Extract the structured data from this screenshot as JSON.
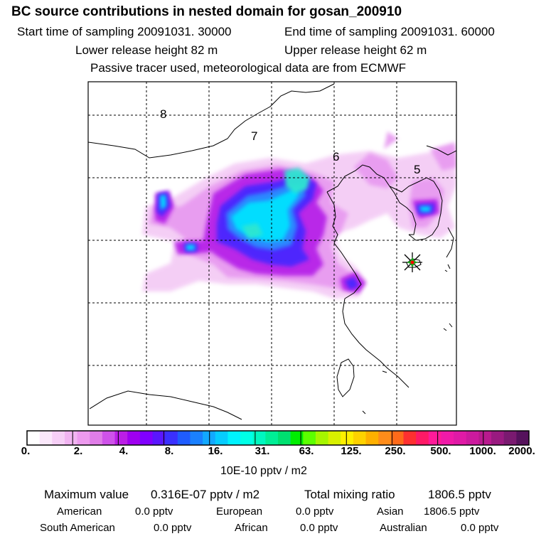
{
  "header": {
    "title": "BC  source contributions in nested domain for gosan_200910",
    "start_label": "Start time of sampling 20091031. 30000",
    "end_label": "End time of sampling 20091031. 60000",
    "lower_release": "Lower release height   82 m",
    "upper_release": "Upper release height   62 m",
    "tracer_note": "Passive tracer used, meteorological data are from ECMWF"
  },
  "map": {
    "region_labels": [
      "8",
      "7",
      "6",
      "5"
    ],
    "receptor_marker": "gosan-receptor-star"
  },
  "colorbar": {
    "colors": [
      "#ffffff",
      "#fbe8fb",
      "#f6cff6",
      "#f1b4f1",
      "#ed9aee",
      "#e07de8",
      "#cf52ea",
      "#bb1ee6",
      "#9f00f0",
      "#8000ff",
      "#5a16ff",
      "#3a30ff",
      "#1f5cff",
      "#1a80ff",
      "#12a8ff",
      "#06ccff",
      "#00f2ff",
      "#00ffe6",
      "#00f8c0",
      "#00ee96",
      "#00e070",
      "#00ee00",
      "#5cff00",
      "#a6f500",
      "#d8f000",
      "#fff000",
      "#ffd200",
      "#ffb000",
      "#ff8c1a",
      "#ff6a1a",
      "#ff3030",
      "#ff1a66",
      "#ff1a99",
      "#f01aa8",
      "#e01aa6",
      "#cc1a9e",
      "#b81a8e",
      "#991a80",
      "#7a1a70",
      "#55125c"
    ],
    "ticks": [
      "0.",
      "2.",
      "4.",
      "8.",
      "16.",
      "31.",
      "63.",
      "125.",
      "250.",
      "500.",
      "1000.",
      "2000."
    ],
    "units": "10E-10 pptv / m2"
  },
  "summary": {
    "max_label": "Maximum value",
    "max_value": "0.316E-07 pptv / m2",
    "total_label": "Total mixing ratio",
    "total_value": "1806.5 pptv"
  },
  "contributions": [
    {
      "region": "American",
      "value": "0.0 pptv"
    },
    {
      "region": "European",
      "value": "0.0 pptv"
    },
    {
      "region": "Asian",
      "value": "1806.5 pptv"
    },
    {
      "region": "South American",
      "value": "0.0 pptv"
    },
    {
      "region": "African",
      "value": "0.0 pptv"
    },
    {
      "region": "Australian",
      "value": "0.0 pptv"
    }
  ],
  "colors": {
    "grid": "#000000",
    "coast": "#000000",
    "receptor_star": "#1aa51a",
    "receptor_center": "#ff0000"
  }
}
